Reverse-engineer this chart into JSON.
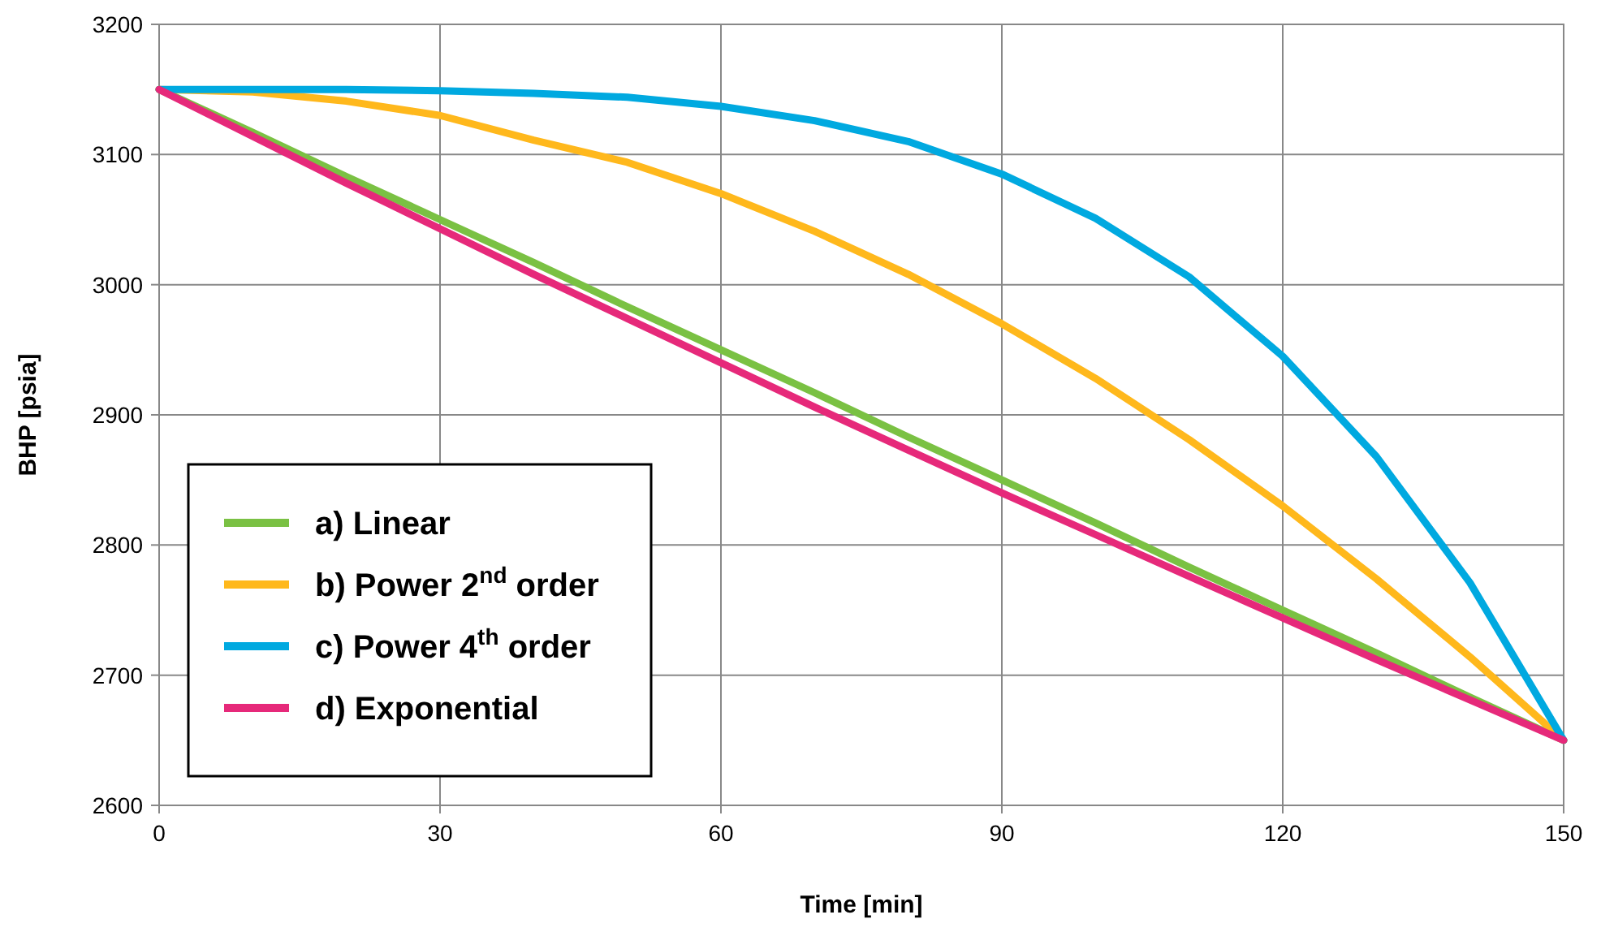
{
  "chart_data": {
    "type": "line",
    "xlabel": "Time [min]",
    "ylabel": "BHP [psia]",
    "x": [
      0,
      10,
      20,
      30,
      40,
      50,
      60,
      70,
      80,
      90,
      100,
      110,
      120,
      130,
      140,
      150
    ],
    "xlim": [
      0,
      150
    ],
    "xticks": [
      0,
      30,
      60,
      90,
      120,
      150
    ],
    "ylim": [
      2600,
      3200
    ],
    "yticks": [
      2600,
      2700,
      2800,
      2900,
      3000,
      3100,
      3200
    ],
    "grid": true,
    "legend": "bottom left",
    "marker": "none",
    "line_style": "solid",
    "series": [
      {
        "name": "a) Linear",
        "color": "#7ac143",
        "values": [
          3150,
          3117,
          3083,
          3050,
          3017,
          2983,
          2950,
          2917,
          2883,
          2850,
          2817,
          2783,
          2750,
          2717,
          2683,
          2650
        ]
      },
      {
        "name": "b) Power 2$^{nd}$ order",
        "color": "#ffb81c",
        "values": [
          3150,
          3148,
          3141,
          3130,
          3111,
          3094,
          3070,
          3041,
          3008,
          2970,
          2928,
          2881,
          2830,
          2774,
          2714,
          2650
        ]
      },
      {
        "name": "c) Power 4$^{th}$ order",
        "color": "#00a9e0",
        "values": [
          3150,
          3150,
          3150,
          3149,
          3147,
          3144,
          3137,
          3126,
          3110,
          3085,
          3051,
          3006,
          2945,
          2868,
          2771,
          2650
        ]
      },
      {
        "name": "d) Exponential",
        "color": "#e6297a",
        "values": [
          3150,
          3114,
          3078,
          3043,
          3008,
          2974,
          2940,
          2906,
          2873,
          2840,
          2808,
          2776,
          2744,
          2712,
          2681,
          2650
        ]
      }
    ]
  }
}
